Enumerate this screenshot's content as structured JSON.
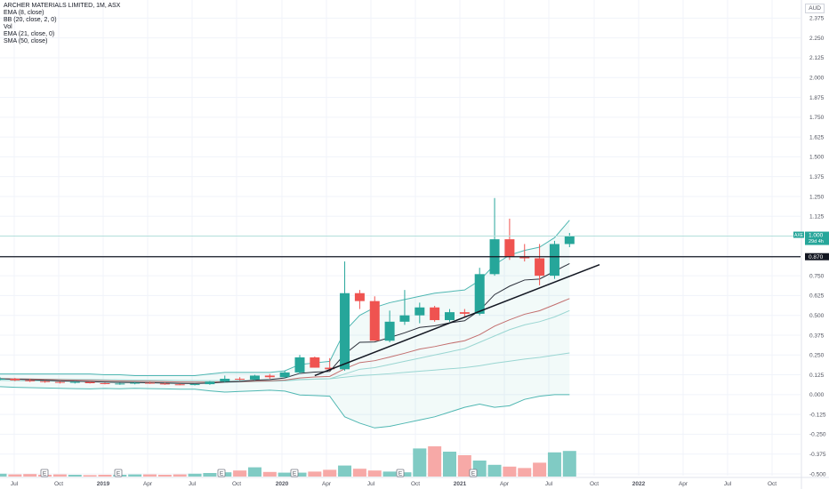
{
  "legend": {
    "symbol": "ARCHER MATERIALS LIMITED, 1M, ASX",
    "ema8": "EMA (8, close)",
    "bb": "BB (20, close, 2, 0)",
    "vol": "Vol",
    "ema21": "EMA (21, close, 0)",
    "sma50": "SMA (50, close)"
  },
  "currency": "AUD",
  "price_tag": {
    "symbol": "AXE",
    "price": "1.000",
    "countdown": "29d 4h"
  },
  "hline_label": "0.870",
  "colors": {
    "up": "#26a69a",
    "down": "#ef5350",
    "up_vol": "#80cbc4",
    "down_vol": "#f7a9a7",
    "bb": "#4fb7b2",
    "ema8": "#2a2e39",
    "ema21": "#c26e6e",
    "sma50": "#9ad6d2",
    "grid": "#f0f3fa",
    "hline": "#131722"
  },
  "chart_data": {
    "type": "candlestick",
    "y_axis": {
      "ticks": [
        "2.375",
        "2.250",
        "2.125",
        "2.000",
        "1.875",
        "1.750",
        "1.625",
        "1.500",
        "1.375",
        "1.250",
        "1.125",
        "1.000",
        "0.875",
        "0.750",
        "0.625",
        "0.500",
        "0.375",
        "0.250",
        "0.125",
        "0.000",
        "-0.125",
        "-0.250",
        "-0.375",
        "-0.500"
      ],
      "range": [
        -0.5,
        2.45
      ]
    },
    "x_axis": {
      "ticks": [
        "Jul",
        "Oct",
        "2019",
        "Apr",
        "Jul",
        "Oct",
        "2020",
        "Apr",
        "Jul",
        "Oct",
        "2021",
        "Apr",
        "Jul",
        "Oct",
        "2022",
        "Apr",
        "Jul",
        "Oct"
      ]
    },
    "earnings_markers": [
      "E",
      "E",
      "E",
      "E",
      "E",
      "E",
      "E",
      "E"
    ],
    "months": [
      "2018-05",
      "2018-06",
      "2018-07",
      "2018-08",
      "2018-09",
      "2018-10",
      "2018-11",
      "2018-12",
      "2019-01",
      "2019-02",
      "2019-03",
      "2019-04",
      "2019-05",
      "2019-06",
      "2019-07",
      "2019-08",
      "2019-09",
      "2019-10",
      "2019-11",
      "2019-12",
      "2020-01",
      "2020-02",
      "2020-03",
      "2020-04",
      "2020-05",
      "2020-06",
      "2020-07",
      "2020-08",
      "2020-09",
      "2020-10",
      "2020-11",
      "2020-12",
      "2021-01",
      "2021-02",
      "2021-03",
      "2021-04",
      "2021-05",
      "2021-06",
      "2021-07"
    ],
    "ohlc": [
      [
        0.1,
        0.11,
        0.09,
        0.1
      ],
      [
        0.1,
        0.105,
        0.085,
        0.09
      ],
      [
        0.09,
        0.1,
        0.08,
        0.085
      ],
      [
        0.085,
        0.09,
        0.075,
        0.08
      ],
      [
        0.08,
        0.085,
        0.07,
        0.075
      ],
      [
        0.075,
        0.085,
        0.07,
        0.08
      ],
      [
        0.08,
        0.082,
        0.07,
        0.072
      ],
      [
        0.072,
        0.075,
        0.065,
        0.068
      ],
      [
        0.068,
        0.075,
        0.062,
        0.07
      ],
      [
        0.07,
        0.08,
        0.065,
        0.075
      ],
      [
        0.075,
        0.08,
        0.068,
        0.07
      ],
      [
        0.07,
        0.075,
        0.062,
        0.065
      ],
      [
        0.065,
        0.07,
        0.06,
        0.062
      ],
      [
        0.062,
        0.07,
        0.058,
        0.066
      ],
      [
        0.066,
        0.085,
        0.062,
        0.082
      ],
      [
        0.082,
        0.12,
        0.078,
        0.1
      ],
      [
        0.1,
        0.11,
        0.09,
        0.095
      ],
      [
        0.095,
        0.125,
        0.09,
        0.12
      ],
      [
        0.12,
        0.13,
        0.1,
        0.11
      ],
      [
        0.11,
        0.15,
        0.105,
        0.14
      ],
      [
        0.14,
        0.25,
        0.13,
        0.235
      ],
      [
        0.235,
        0.24,
        0.17,
        0.17
      ],
      [
        0.17,
        0.23,
        0.15,
        0.16
      ],
      [
        0.16,
        0.84,
        0.15,
        0.64
      ],
      [
        0.64,
        0.66,
        0.54,
        0.59
      ],
      [
        0.59,
        0.62,
        0.34,
        0.34
      ],
      [
        0.34,
        0.53,
        0.33,
        0.46
      ],
      [
        0.46,
        0.66,
        0.44,
        0.5
      ],
      [
        0.5,
        0.58,
        0.45,
        0.55
      ],
      [
        0.55,
        0.56,
        0.46,
        0.47
      ],
      [
        0.47,
        0.54,
        0.46,
        0.52
      ],
      [
        0.52,
        0.54,
        0.49,
        0.51
      ],
      [
        0.51,
        0.8,
        0.5,
        0.76
      ],
      [
        0.76,
        1.24,
        0.75,
        0.98
      ],
      [
        0.98,
        1.11,
        0.85,
        0.87
      ],
      [
        0.87,
        0.95,
        0.84,
        0.86
      ],
      [
        0.86,
        0.95,
        0.69,
        0.75
      ],
      [
        0.75,
        0.97,
        0.73,
        0.95
      ],
      [
        0.95,
        1.02,
        0.93,
        1.0
      ]
    ],
    "volume_relative": [
      0.08,
      0.06,
      0.07,
      0.05,
      0.06,
      0.05,
      0.04,
      0.05,
      0.05,
      0.06,
      0.06,
      0.05,
      0.06,
      0.08,
      0.1,
      0.12,
      0.17,
      0.26,
      0.13,
      0.11,
      0.11,
      0.14,
      0.19,
      0.31,
      0.22,
      0.17,
      0.14,
      0.12,
      0.79,
      0.85,
      0.7,
      0.6,
      0.45,
      0.33,
      0.28,
      0.24,
      0.39,
      0.68,
      0.72
    ],
    "indicators": {
      "ema8": [
        0.1,
        0.097,
        0.094,
        0.091,
        0.087,
        0.085,
        0.082,
        0.079,
        0.077,
        0.076,
        0.075,
        0.073,
        0.071,
        0.07,
        0.073,
        0.079,
        0.083,
        0.091,
        0.095,
        0.105,
        0.134,
        0.142,
        0.146,
        0.256,
        0.33,
        0.332,
        0.36,
        0.39,
        0.424,
        0.434,
        0.453,
        0.466,
        0.531,
        0.631,
        0.684,
        0.723,
        0.729,
        0.778,
        0.827
      ],
      "ema21": [
        0.1,
        0.099,
        0.098,
        0.096,
        0.094,
        0.092,
        0.09,
        0.088,
        0.086,
        0.085,
        0.084,
        0.082,
        0.08,
        0.079,
        0.079,
        0.081,
        0.082,
        0.085,
        0.087,
        0.092,
        0.105,
        0.111,
        0.115,
        0.163,
        0.202,
        0.214,
        0.237,
        0.261,
        0.287,
        0.303,
        0.323,
        0.34,
        0.378,
        0.432,
        0.472,
        0.507,
        0.529,
        0.567,
        0.606
      ],
      "sma50": [
        0.1,
        0.1,
        0.099,
        0.098,
        0.097,
        0.096,
        0.095,
        0.094,
        0.093,
        0.092,
        0.091,
        0.09,
        0.089,
        0.088,
        0.088,
        0.088,
        0.088,
        0.089,
        0.09,
        0.092,
        0.096,
        0.098,
        0.1,
        0.11,
        0.12,
        0.125,
        0.132,
        0.14,
        0.148,
        0.155,
        0.163,
        0.17,
        0.182,
        0.198,
        0.211,
        0.224,
        0.235,
        0.249,
        0.263
      ],
      "bb_upper": [
        0.13,
        0.13,
        0.13,
        0.13,
        0.13,
        0.13,
        0.13,
        0.125,
        0.125,
        0.12,
        0.12,
        0.12,
        0.12,
        0.12,
        0.13,
        0.14,
        0.14,
        0.14,
        0.14,
        0.15,
        0.19,
        0.2,
        0.21,
        0.4,
        0.5,
        0.55,
        0.58,
        0.6,
        0.62,
        0.64,
        0.65,
        0.66,
        0.72,
        0.82,
        0.88,
        0.91,
        0.93,
        0.99,
        1.1
      ],
      "bb_basis": [
        0.09,
        0.088,
        0.087,
        0.086,
        0.085,
        0.084,
        0.083,
        0.082,
        0.081,
        0.08,
        0.079,
        0.078,
        0.077,
        0.077,
        0.077,
        0.078,
        0.08,
        0.082,
        0.084,
        0.086,
        0.094,
        0.097,
        0.1,
        0.13,
        0.16,
        0.17,
        0.19,
        0.21,
        0.23,
        0.25,
        0.27,
        0.29,
        0.33,
        0.37,
        0.41,
        0.44,
        0.46,
        0.49,
        0.53
      ],
      "bb_lower": [
        0.05,
        0.046,
        0.044,
        0.042,
        0.04,
        0.038,
        0.036,
        0.039,
        0.037,
        0.04,
        0.038,
        0.036,
        0.034,
        0.034,
        0.024,
        0.016,
        0.02,
        0.024,
        0.028,
        0.022,
        -0.002,
        -0.006,
        -0.01,
        -0.14,
        -0.18,
        -0.21,
        -0.2,
        -0.18,
        -0.16,
        -0.14,
        -0.11,
        -0.08,
        -0.06,
        -0.08,
        -0.07,
        -0.03,
        -0.01,
        0.0,
        0.0
      ]
    },
    "trendline": [
      {
        "x": "2020-02",
        "y": 0.12
      },
      {
        "x": "2021-09",
        "y": 0.82
      }
    ],
    "horizontal_line": 0.87,
    "last_price": 1.0
  }
}
